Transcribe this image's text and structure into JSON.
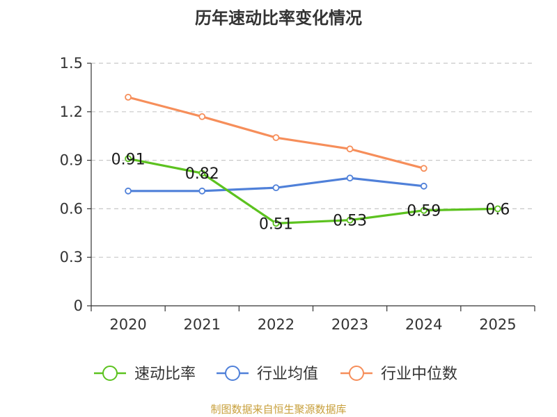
{
  "chart_data": {
    "type": "line",
    "title": "历年速动比率变化情况",
    "categories": [
      "2020",
      "2021",
      "2022",
      "2023",
      "2024",
      "2025"
    ],
    "ylim": [
      0,
      1.5
    ],
    "yticks": [
      "0",
      "0.3",
      "0.6",
      "0.9",
      "1.2",
      "1.5"
    ],
    "grid": true,
    "legend_position": "bottom",
    "series": [
      {
        "name": "速动比率",
        "color": "#5cc21f",
        "values": [
          0.91,
          0.82,
          0.51,
          0.53,
          0.59,
          0.6
        ],
        "labels": [
          "0.91",
          "0.82",
          "0.51",
          "0.53",
          "0.59",
          "0.6"
        ]
      },
      {
        "name": "行业均值",
        "color": "#4f80d9",
        "values": [
          0.71,
          0.71,
          0.73,
          0.79,
          0.74,
          null
        ]
      },
      {
        "name": "行业中位数",
        "color": "#f68e5a",
        "values": [
          1.29,
          1.17,
          1.04,
          0.97,
          0.85,
          null
        ]
      }
    ]
  },
  "source_note": "制图数据来自恒生聚源数据库"
}
